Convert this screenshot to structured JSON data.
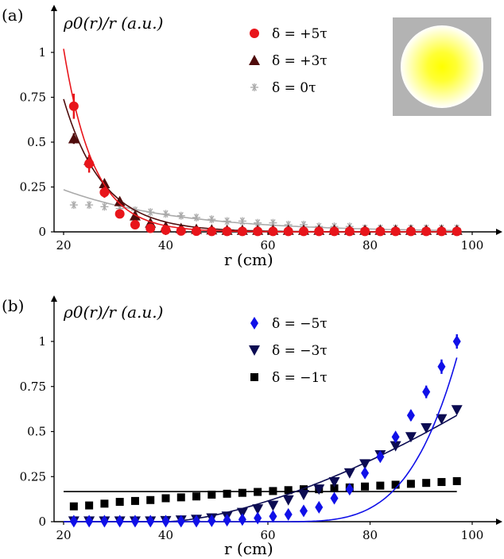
{
  "chart_data": [
    {
      "panel_label": "(a)",
      "type": "scatter",
      "ylabel": "ρ0(r)/r (a.u.)",
      "xlabel": "r (cm)",
      "xlim": [
        18,
        102
      ],
      "ylim": [
        0,
        1.1
      ],
      "xticks": [
        20,
        40,
        60,
        80,
        100
      ],
      "yticks": [
        0,
        0.25,
        0.5,
        0.75,
        1
      ],
      "ytick_labels": [
        "0",
        "0.25",
        "0.5",
        "0.75",
        "1"
      ],
      "xtick_labels": [
        "20",
        "40",
        "60",
        "80",
        "100"
      ],
      "legend_position": "top-center",
      "inset": {
        "description": "yellow-gradient disk on grey square",
        "colors": [
          "#ffff00",
          "#ffffff",
          "#b3b3b3"
        ]
      },
      "x": [
        22,
        25,
        28,
        31,
        34,
        37,
        40,
        43,
        46,
        49,
        52,
        55,
        58,
        61,
        64,
        67,
        70,
        73,
        76,
        79,
        82,
        85,
        88,
        91,
        94,
        97
      ],
      "series": [
        {
          "name": "δ = +5τ",
          "marker": "circle",
          "color": "#e8151b",
          "values": [
            0.7,
            0.38,
            0.22,
            0.1,
            0.04,
            0.02,
            0.01,
            0.005,
            0.004,
            0.003,
            0.003,
            0.003,
            0.003,
            0.003,
            0.003,
            0.003,
            0.003,
            0.003,
            0.003,
            0.003,
            0.003,
            0.003,
            0.003,
            0.003,
            0.003,
            0.003
          ],
          "errors": [
            0.07,
            0.05,
            0.03,
            0.01,
            0.01,
            0,
            0,
            0,
            0,
            0,
            0,
            0,
            0,
            0,
            0,
            0,
            0,
            0,
            0,
            0,
            0,
            0,
            0,
            0,
            0,
            0
          ],
          "fit": {
            "type": "exponential",
            "a": 1.02,
            "x0": 20,
            "k": 0.17
          }
        },
        {
          "name": "δ = +3τ",
          "marker": "triangle-up",
          "color": "#4f0c0c",
          "values": [
            0.52,
            0.4,
            0.27,
            0.17,
            0.09,
            0.05,
            0.03,
            0.02,
            0.015,
            0.012,
            0.01,
            0.01,
            0.01,
            0.01,
            0.01,
            0.01,
            0.01,
            0.01,
            0.01,
            0.01,
            0.01,
            0.01,
            0.01,
            0.01,
            0.01,
            0.01
          ],
          "errors": [
            0.03,
            0.02,
            0.02,
            0.01,
            0,
            0,
            0,
            0,
            0,
            0,
            0,
            0,
            0,
            0,
            0,
            0,
            0,
            0,
            0,
            0,
            0,
            0,
            0,
            0,
            0,
            0
          ],
          "fit": {
            "type": "exponential",
            "a": 0.74,
            "x0": 20,
            "k": 0.13
          }
        },
        {
          "name": "δ = 0τ",
          "marker": "asterisk",
          "color": "#aaaaaa",
          "values": [
            0.15,
            0.15,
            0.14,
            0.13,
            0.12,
            0.11,
            0.1,
            0.09,
            0.08,
            0.07,
            0.06,
            0.06,
            0.05,
            0.05,
            0.04,
            0.04,
            0.03,
            0.03,
            0.03,
            0.02,
            0.02,
            0.02,
            0.02,
            0.02,
            0.02,
            0.02
          ],
          "errors": [],
          "fit": {
            "type": "exponential",
            "a": 0.235,
            "x0": 20,
            "k": 0.045
          }
        }
      ]
    },
    {
      "panel_label": "(b)",
      "type": "scatter",
      "ylabel": "ρ0(r)/r (a.u.)",
      "xlabel": "r (cm)",
      "xlim": [
        18,
        102
      ],
      "ylim": [
        0,
        1.1
      ],
      "xticks": [
        20,
        40,
        60,
        80,
        100
      ],
      "yticks": [
        0,
        0.25,
        0.5,
        0.75,
        1
      ],
      "ytick_labels": [
        "0",
        "0.25",
        "0.5",
        "0.75",
        "1"
      ],
      "xtick_labels": [
        "20",
        "40",
        "60",
        "80",
        "100"
      ],
      "legend_position": "top-center",
      "x": [
        22,
        25,
        28,
        31,
        34,
        37,
        40,
        43,
        46,
        49,
        52,
        55,
        58,
        61,
        64,
        67,
        70,
        73,
        76,
        79,
        82,
        85,
        88,
        91,
        94,
        97
      ],
      "series": [
        {
          "name": "δ = −5τ",
          "marker": "diamond",
          "color": "#1010e8",
          "values": [
            0.003,
            0.003,
            0.003,
            0.003,
            0.003,
            0.003,
            0.003,
            0.003,
            0.003,
            0.005,
            0.008,
            0.012,
            0.02,
            0.03,
            0.04,
            0.06,
            0.08,
            0.13,
            0.18,
            0.27,
            0.36,
            0.47,
            0.59,
            0.72,
            0.86,
            1.0
          ],
          "errors": [
            0,
            0,
            0,
            0,
            0,
            0,
            0,
            0,
            0,
            0,
            0,
            0,
            0,
            0,
            0,
            0,
            0,
            0.01,
            0.01,
            0.015,
            0.02,
            0.025,
            0.03,
            0.035,
            0.04,
            0.04
          ],
          "fit": {
            "type": "power",
            "a": 0.91,
            "xref": 97,
            "p": 13,
            "x0": 60
          }
        },
        {
          "name": "δ = −3τ",
          "marker": "triangle-down",
          "color": "#0b0b52",
          "values": [
            0.003,
            0.003,
            0.003,
            0.003,
            0.003,
            0.003,
            0.005,
            0.008,
            0.012,
            0.02,
            0.03,
            0.05,
            0.07,
            0.09,
            0.12,
            0.15,
            0.18,
            0.22,
            0.27,
            0.32,
            0.37,
            0.42,
            0.47,
            0.52,
            0.57,
            0.62
          ],
          "errors": [],
          "fit": {
            "type": "power",
            "a": 0.59,
            "xref": 97,
            "p": 5,
            "x0": 40
          }
        },
        {
          "name": "δ = −1τ",
          "marker": "square",
          "color": "#000000",
          "values": [
            0.085,
            0.09,
            0.1,
            0.11,
            0.115,
            0.12,
            0.13,
            0.135,
            0.14,
            0.15,
            0.155,
            0.16,
            0.165,
            0.17,
            0.175,
            0.18,
            0.18,
            0.185,
            0.19,
            0.195,
            0.2,
            0.205,
            0.21,
            0.215,
            0.22,
            0.225
          ],
          "errors": [],
          "fit": {
            "type": "constant",
            "a": 0.167
          }
        }
      ]
    }
  ]
}
